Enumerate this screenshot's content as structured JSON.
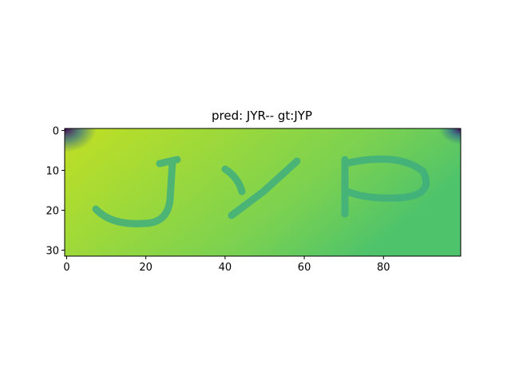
{
  "chart_data": {
    "type": "image",
    "title": "pred: JYR-- gt:JYP",
    "xlim": [
      -0.5,
      99.5
    ],
    "ylim": [
      31.5,
      -0.5
    ],
    "xticks": [
      0,
      20,
      40,
      60,
      80
    ],
    "yticks": [
      0,
      10,
      20,
      30
    ]
  }
}
